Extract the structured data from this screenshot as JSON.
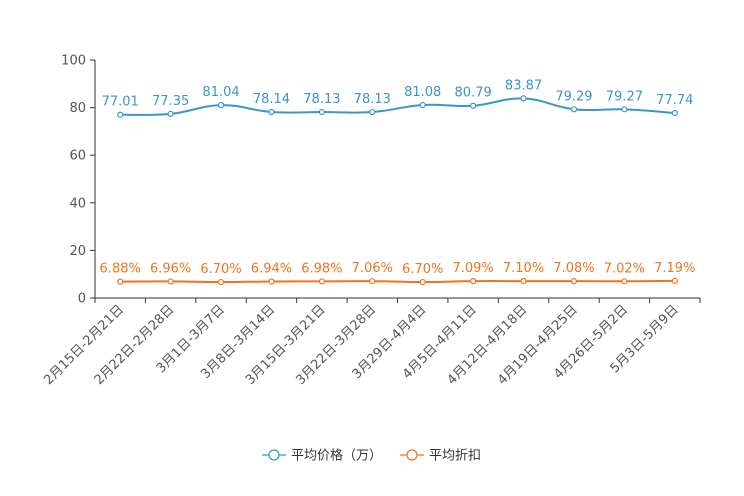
{
  "chart_data": {
    "type": "line",
    "title": "",
    "xlabel": "",
    "ylabel": "",
    "ylim": [
      0,
      100
    ],
    "yticks": [
      0,
      20,
      40,
      60,
      80,
      100
    ],
    "grid": false,
    "legend_position": "bottom-center",
    "categories": [
      "2月15日-2月21日",
      "2月22日-2月28日",
      "3月1日-3月7日",
      "3月8日-3月14日",
      "3月15日-3月21日",
      "3月22日-3月28日",
      "3月29日-4月4日",
      "4月5日-4月11日",
      "4月12日-4月18日",
      "4月19日-4月25日",
      "4月26日-5月2日",
      "5月3日-5月9日"
    ],
    "series": [
      {
        "name": "平均价格（万）",
        "color": "#3a96c9",
        "values": [
          77.01,
          77.35,
          81.04,
          78.14,
          78.13,
          78.13,
          81.08,
          80.79,
          83.87,
          79.29,
          79.27,
          77.74
        ],
        "labels": [
          "77.01",
          "77.35",
          "81.04",
          "78.14",
          "78.13",
          "78.13",
          "81.08",
          "80.79",
          "83.87",
          "79.29",
          "79.27",
          "77.74"
        ]
      },
      {
        "name": "平均折扣",
        "color": "#ee7520",
        "values": [
          6.88,
          6.96,
          6.7,
          6.94,
          6.98,
          7.06,
          6.7,
          7.09,
          7.1,
          7.08,
          7.02,
          7.19
        ],
        "labels": [
          "6.88%",
          "6.96%",
          "6.70%",
          "6.94%",
          "6.98%",
          "7.06%",
          "6.70%",
          "7.09%",
          "7.10%",
          "7.08%",
          "7.02%",
          "7.19%"
        ]
      }
    ]
  }
}
